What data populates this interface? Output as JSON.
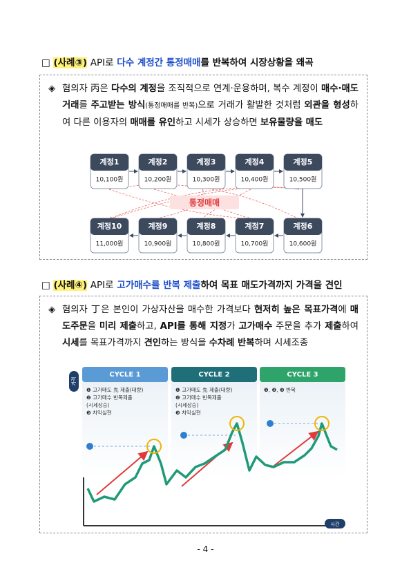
{
  "section1": {
    "heading": {
      "box": "□",
      "case": "(사례③)",
      "api": "API로",
      "highlight": "다수 계정간 통정매매",
      "rest": "를 반복하여 시장상황을 왜곡"
    },
    "body": {
      "bullet": "◈",
      "segments": [
        "혐의자 丙은 ",
        "다수의 계정",
        "을 조직적으로 연계·운용하며, 복수 계정이 ",
        "매수·매도거래",
        "를 ",
        "주고받는 방식",
        "(통정매매를 반복)",
        "으로 거래가 활발한 것처럼 ",
        "외관을 형성",
        "하여 다른 이용자의 ",
        "매매를 유인",
        "하고 시세가 상승하면 ",
        "보유물량을 매도"
      ]
    },
    "diagram": {
      "center": "통정매매",
      "top": [
        {
          "label": "계정1",
          "value": "10,100원"
        },
        {
          "label": "계정2",
          "value": "10,200원"
        },
        {
          "label": "계정3",
          "value": "10,300원"
        },
        {
          "label": "계정4",
          "value": "10,400원"
        },
        {
          "label": "계정5",
          "value": "10,500원"
        }
      ],
      "bottom": [
        {
          "label": "계정10",
          "value": "11,000원"
        },
        {
          "label": "계정9",
          "value": "10,900원"
        },
        {
          "label": "계정8",
          "value": "10,800원"
        },
        {
          "label": "계정7",
          "value": "10,700원"
        },
        {
          "label": "계정6",
          "value": "10,600원"
        }
      ]
    }
  },
  "section2": {
    "heading": {
      "box": "□",
      "case": "(사례④)",
      "api": "API로",
      "highlight": "고가매수를 반복 제출",
      "rest": "하여 목표 매도가격까지 가격을 견인"
    },
    "body": {
      "bullet": "◈",
      "segments": [
        "혐의자 丁은 본인이 가상자산을 매수한 가격보다 ",
        "현저히 높은 목표가격",
        "에 ",
        "매도주문",
        "을 ",
        "미리 제출",
        "하고, ",
        "API를 통해 지정",
        "가 ",
        "고가매수",
        " 주문을 추가 ",
        "제출",
        "하여 ",
        "시세",
        "를 목표가격까지 ",
        "견인",
        "하는 방식을 ",
        "수차례 반복",
        "하며 시세조종"
      ]
    },
    "figure": {
      "y_label": "가격",
      "x_label": "시간",
      "cycles": [
        {
          "title": "CYCLE 1",
          "items": [
            "❶ 고가매도 先 제출(대량)",
            "❷ 고가매수 반복제출",
            "(시세상승)",
            "❸ 차익실현"
          ]
        },
        {
          "title": "CYCLE 2",
          "items": [
            "❶ 고가매도 先 제출(대량)",
            "❷ 고가매수 반복제출",
            "(시세상승)",
            "❸ 차익실현"
          ]
        },
        {
          "title": "CYCLE 3",
          "items": [
            "❶, ❷, ❸ 반복"
          ]
        }
      ]
    }
  },
  "footer": {
    "page": "- 4 -"
  }
}
